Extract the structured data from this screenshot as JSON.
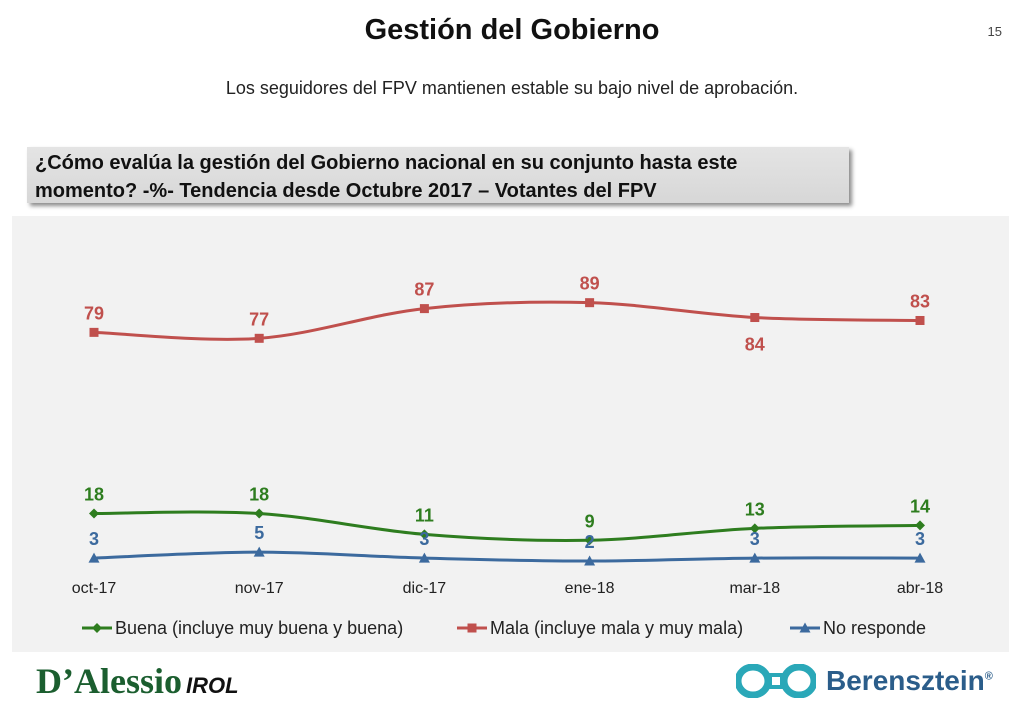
{
  "header": {
    "title": "Gestión del Gobierno",
    "page_number": "15",
    "subtitle": "Los seguidores del FPV mantienen estable su bajo nivel de aprobación."
  },
  "question": {
    "line1": "¿Cómo evalúa la gestión del Gobierno nacional en su conjunto hasta este",
    "line2": "momento? -%- Tendencia desde Octubre 2017 – Votantes del FPV"
  },
  "chart_data": {
    "type": "line",
    "title": "¿Cómo evalúa la gestión del Gobierno nacional en su conjunto hasta este momento? -%- Tendencia desde Octubre 2017 – Votantes del FPV",
    "categories": [
      "oct-17",
      "nov-17",
      "dic-17",
      "ene-18",
      "mar-18",
      "abr-18"
    ],
    "ylim": [
      0,
      100
    ],
    "grid": false,
    "legend_position": "bottom",
    "series": [
      {
        "name": "Buena (incluye muy buena y buena)",
        "values": [
          18,
          18,
          11,
          9,
          13,
          14
        ],
        "color": "#2e7d1f",
        "marker": "diamond",
        "label_positions": [
          "above",
          "above",
          "above",
          "above",
          "above",
          "above"
        ]
      },
      {
        "name": "Mala (incluye mala y muy mala)",
        "values": [
          79,
          77,
          87,
          89,
          84,
          83
        ],
        "color": "#c0504d",
        "marker": "square",
        "label_positions": [
          "above",
          "above",
          "above",
          "above",
          "below",
          "above"
        ]
      },
      {
        "name": "No responde",
        "values": [
          3,
          5,
          3,
          2,
          3,
          3
        ],
        "color": "#3c6a9e",
        "marker": "triangle",
        "label_positions": [
          "above",
          "above",
          "above",
          "above",
          "above",
          "above"
        ]
      }
    ]
  },
  "logos": {
    "left": "D’Alessio",
    "left_suffix": "IROL",
    "right": "Berensztein",
    "right_mark": "®"
  }
}
